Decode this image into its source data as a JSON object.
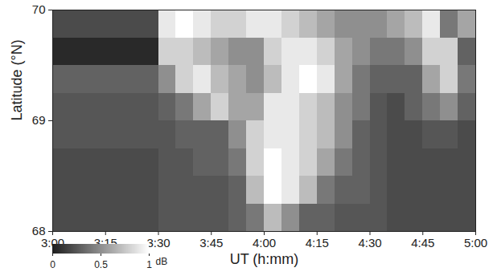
{
  "chart_data": {
    "type": "heatmap",
    "xlabel": "UT (h:mm)",
    "ylabel": "Latitude (°N)",
    "x_edges": [
      180,
      185,
      190,
      195,
      200,
      205,
      210,
      215,
      220,
      225,
      230,
      235,
      240,
      245,
      250,
      255,
      260,
      265,
      270,
      275,
      280,
      285,
      290,
      295,
      300
    ],
    "y_edges": [
      68,
      68.25,
      68.5,
      68.75,
      69,
      69.25,
      69.5,
      69.75,
      70
    ],
    "z": [
      [
        0.2,
        0.2,
        0.2,
        0.2,
        0.2,
        0.2,
        0.25,
        0.25,
        0.25,
        0.25,
        0.3,
        0.4,
        0.7,
        0.5,
        0.3,
        0.3,
        0.25,
        0.25,
        0.25,
        0.2,
        0.2,
        0.2,
        0.2,
        0.2
      ],
      [
        0.2,
        0.2,
        0.2,
        0.2,
        0.2,
        0.2,
        0.25,
        0.25,
        0.25,
        0.25,
        0.3,
        0.7,
        1,
        0.9,
        0.7,
        0.4,
        0.3,
        0.3,
        0.25,
        0.2,
        0.2,
        0.2,
        0.2,
        0.2
      ],
      [
        0.2,
        0.2,
        0.2,
        0.2,
        0.2,
        0.2,
        0.25,
        0.25,
        0.3,
        0.3,
        0.4,
        0.8,
        1,
        0.9,
        0.8,
        0.6,
        0.4,
        0.3,
        0.25,
        0.2,
        0.2,
        0.2,
        0.2,
        0.2
      ],
      [
        0.25,
        0.25,
        0.25,
        0.25,
        0.25,
        0.25,
        0.25,
        0.3,
        0.3,
        0.3,
        0.5,
        0.8,
        0.9,
        0.9,
        0.8,
        0.7,
        0.5,
        0.3,
        0.25,
        0.2,
        0.2,
        0.25,
        0.25,
        0.2
      ],
      [
        0.25,
        0.25,
        0.25,
        0.25,
        0.25,
        0.25,
        0.3,
        0.4,
        0.6,
        0.8,
        0.6,
        0.6,
        0.9,
        0.9,
        0.8,
        0.7,
        0.5,
        0.4,
        0.25,
        0.2,
        0.3,
        0.4,
        0.5,
        0.3
      ],
      [
        0.3,
        0.3,
        0.3,
        0.3,
        0.3,
        0.3,
        0.5,
        0.8,
        0.9,
        0.7,
        0.6,
        0.5,
        0.7,
        0.9,
        1,
        0.9,
        0.6,
        0.4,
        0.3,
        0.3,
        0.3,
        0.6,
        0.8,
        0.4
      ],
      [
        0.05,
        0.05,
        0.05,
        0.05,
        0.05,
        0.05,
        0.8,
        0.8,
        0.7,
        0.6,
        0.5,
        0.5,
        0.8,
        0.9,
        0.9,
        0.8,
        0.6,
        0.5,
        0.4,
        0.4,
        0.5,
        0.8,
        0.8,
        0.3
      ],
      [
        0.2,
        0.2,
        0.2,
        0.2,
        0.2,
        0.2,
        0.9,
        1,
        0.9,
        0.8,
        0.8,
        0.9,
        0.9,
        0.8,
        0.7,
        0.6,
        0.5,
        0.5,
        0.5,
        0.6,
        0.7,
        0.9,
        0.4,
        0.6
      ]
    ],
    "xlim": [
      180,
      300
    ],
    "ylim": [
      68,
      70
    ],
    "xticks": [
      {
        "value": 180,
        "label": "3:00"
      },
      {
        "value": 195,
        "label": "3:15"
      },
      {
        "value": 210,
        "label": "3:30"
      },
      {
        "value": 225,
        "label": "3:45"
      },
      {
        "value": 240,
        "label": "4:00"
      },
      {
        "value": 255,
        "label": "4:15"
      },
      {
        "value": 270,
        "label": "4:30"
      },
      {
        "value": 285,
        "label": "4:45"
      },
      {
        "value": 300,
        "label": "5:00"
      }
    ],
    "yticks": [
      68,
      69,
      70
    ],
    "colorbar": {
      "label": "dB",
      "lim": [
        0,
        1
      ],
      "ticks": [
        0,
        0.5,
        1
      ]
    }
  }
}
